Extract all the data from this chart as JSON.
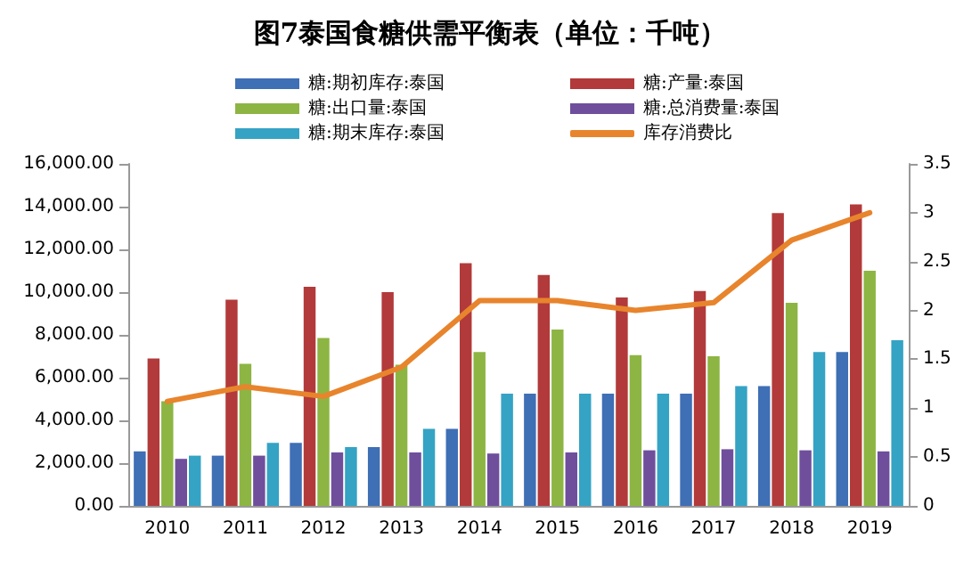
{
  "chart_data": {
    "type": "bar",
    "title": "图7泰国食糖供需平衡表（单位：千吨）",
    "categories": [
      "2010",
      "2011",
      "2012",
      "2013",
      "2014",
      "2015",
      "2016",
      "2017",
      "2018",
      "2019"
    ],
    "series": [
      {
        "name": "糖:期初库存:泰国",
        "color": "#3f6fb5",
        "values": [
          2550,
          2350,
          2950,
          2750,
          3600,
          5250,
          5250,
          5250,
          5600,
          7200
        ]
      },
      {
        "name": "糖:产量:泰国",
        "color": "#b23a3a",
        "values": [
          6900,
          9650,
          10250,
          10000,
          11350,
          10800,
          9750,
          10050,
          13700,
          14100
        ]
      },
      {
        "name": "糖:出口量:泰国",
        "color": "#8db543",
        "values": [
          4900,
          6650,
          7850,
          6600,
          7200,
          8250,
          7050,
          7000,
          9500,
          11000
        ]
      },
      {
        "name": "糖:总消费量:泰国",
        "color": "#6f4f9c",
        "values": [
          2200,
          2350,
          2500,
          2500,
          2450,
          2500,
          2600,
          2650,
          2600,
          2550
        ]
      },
      {
        "name": "糖:期末库存:泰国",
        "color": "#35a3c4",
        "values": [
          2350,
          2950,
          2750,
          3600,
          5250,
          5250,
          5250,
          5600,
          7200,
          7750
        ]
      },
      {
        "name": "库存消费比",
        "type": "line",
        "axis": "y2",
        "color": "#e8842c",
        "values": [
          1.07,
          1.22,
          1.12,
          1.42,
          2.1,
          2.1,
          2.0,
          2.08,
          2.72,
          3.0
        ]
      }
    ],
    "ylim": [
      0,
      16000
    ],
    "yticks": [
      {
        "value": 0,
        "label": "0.00"
      },
      {
        "value": 2000,
        "label": "2,000.00"
      },
      {
        "value": 4000,
        "label": "4,000.00"
      },
      {
        "value": 6000,
        "label": "6,000.00"
      },
      {
        "value": 8000,
        "label": "8,000.00"
      },
      {
        "value": 10000,
        "label": "10,000.00"
      },
      {
        "value": 12000,
        "label": "12,000.00"
      },
      {
        "value": 14000,
        "label": "14,000.00"
      },
      {
        "value": 16000,
        "label": "16,000.00"
      }
    ],
    "y2lim": [
      0,
      3.5
    ],
    "y2ticks": [
      0,
      0.5,
      1,
      1.5,
      2,
      2.5,
      3,
      3.5
    ],
    "legend": "top",
    "grid": false
  }
}
